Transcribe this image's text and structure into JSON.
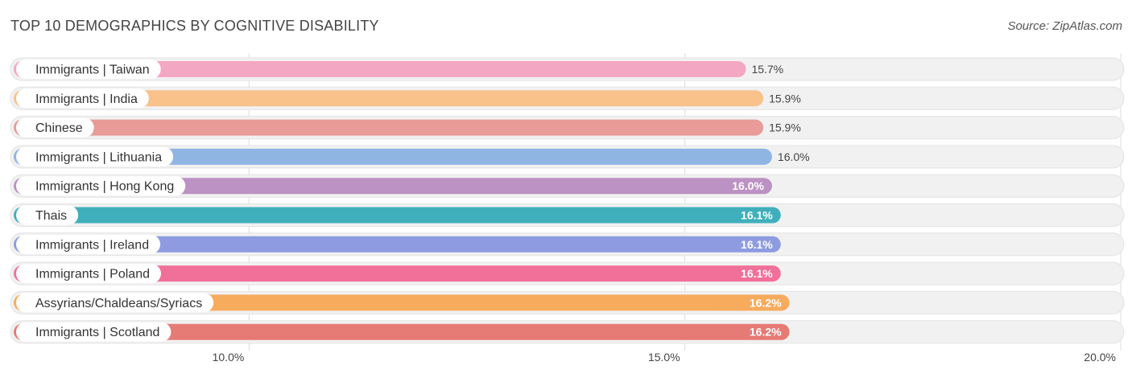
{
  "title": "TOP 10 DEMOGRAPHICS BY COGNITIVE DISABILITY",
  "source": "Source: ZipAtlas.com",
  "chart_data": {
    "type": "bar",
    "orientation": "horizontal",
    "categories": [
      "Immigrants | Taiwan",
      "Immigrants | India",
      "Chinese",
      "Immigrants | Lithuania",
      "Immigrants | Hong Kong",
      "Thais",
      "Immigrants | Ireland",
      "Immigrants | Poland",
      "Assyrians/Chaldeans/Syriacs",
      "Immigrants | Scotland"
    ],
    "values": [
      15.7,
      15.9,
      15.9,
      16.0,
      16.0,
      16.1,
      16.1,
      16.1,
      16.2,
      16.2
    ],
    "value_labels": [
      "15.7%",
      "15.9%",
      "15.9%",
      "16.0%",
      "16.0%",
      "16.1%",
      "16.1%",
      "16.1%",
      "16.2%",
      "16.2%"
    ],
    "colors": [
      "#f4a7c3",
      "#f9c28b",
      "#e89b97",
      "#8fb5e3",
      "#bb92c3",
      "#3fb0bb",
      "#8e9be0",
      "#f07099",
      "#f6ab5d",
      "#e67a74"
    ],
    "xlim": [
      7.3,
      20.0
    ],
    "xticks": [
      10.0,
      15.0,
      20.0
    ],
    "xtick_labels": [
      "10.0%",
      "15.0%",
      "20.0%"
    ],
    "grid": true
  }
}
